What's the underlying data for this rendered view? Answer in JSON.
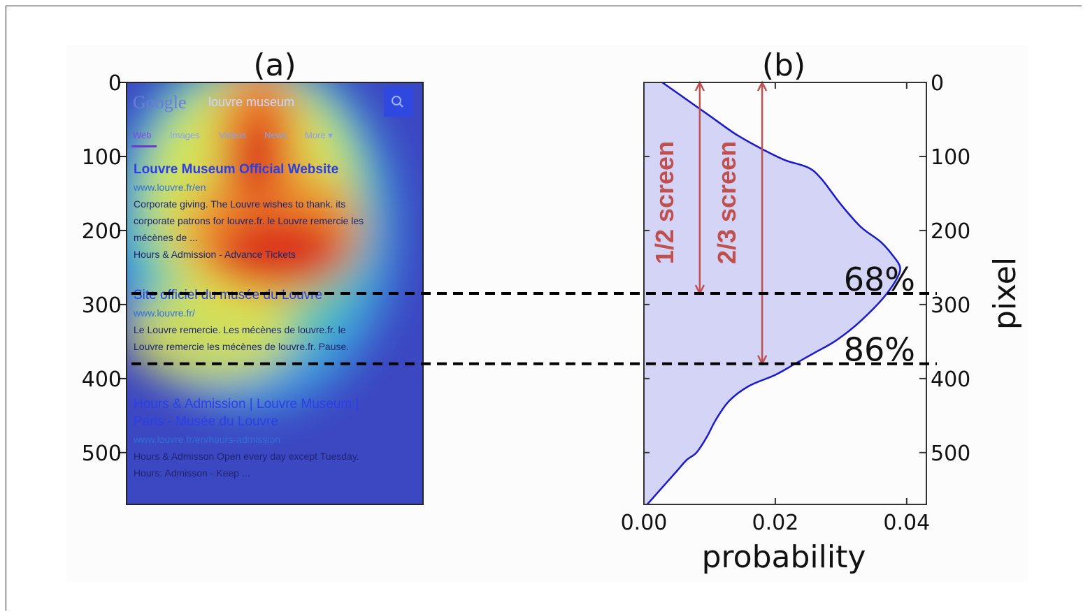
{
  "colors": {
    "density_line": "#1a1acc",
    "density_fill": "#d4d4f7",
    "annotation": "#c0504d",
    "threshold_line": "#000000",
    "heatmap_base": "#3848c8"
  },
  "panel_a": {
    "label": "(a)",
    "serp": {
      "logo": "Google",
      "query": "louvre museum",
      "search_icon": "search-icon",
      "tabs": [
        "Web",
        "Images",
        "Videos",
        "News",
        "More ▾"
      ],
      "results": [
        {
          "title_parts": [
            "Louvre Museum Official Website"
          ],
          "url": "www.louvre.fr/en",
          "snippet_lines": [
            "Corporate giving. The Louvre wishes to thank. its",
            "corporate patrons for louvre.fr. le Louvre remercie les",
            "mécènes de ...",
            "Hours & Admission - Advance Tickets"
          ]
        },
        {
          "title_parts": [
            "Site officiel du musée du Louvre"
          ],
          "url": "www.louvre.fr/",
          "snippet_lines": [
            "Le Louvre remercie. Les mécènes de louvre.fr. le",
            "Louvre remercie les mécènes de louvre.fr. Pause."
          ]
        },
        {
          "title_parts": [
            "Hours & Admission | Louvre Museum |",
            "Paris - Musée du Louvre"
          ],
          "url": "www.louvre.fr/en/hours-admission",
          "snippet_lines": [
            "Hours & Admisson Open every day except Tuesday.",
            "Hours: Admisson - Keep ..."
          ]
        }
      ]
    }
  },
  "panel_b": {
    "label": "(b)"
  },
  "chart_data": {
    "type": "area",
    "xlabel": "probability",
    "ylabel": "pixel",
    "xlim": [
      0.0,
      0.043
    ],
    "ylim": [
      0,
      570
    ],
    "y_inverted": true,
    "x_ticks": [
      "0.00",
      "0.02",
      "0.04"
    ],
    "y_ticks": [
      "0",
      "100",
      "200",
      "300",
      "400",
      "500"
    ],
    "series": [
      {
        "x": [
          0.0028,
          0.006,
          0.01,
          0.014,
          0.018,
          0.0215,
          0.025,
          0.027,
          0.03,
          0.033,
          0.036,
          0.038,
          0.039,
          0.0385,
          0.037,
          0.035,
          0.032,
          0.029,
          0.026,
          0.023,
          0.02,
          0.016,
          0.013,
          0.011,
          0.0095,
          0.008,
          0.0065,
          0.005,
          0.0035,
          0.002,
          0.0005
        ],
        "y": [
          0,
          20,
          45,
          70,
          90,
          105,
          115,
          130,
          165,
          195,
          215,
          235,
          250,
          265,
          285,
          305,
          330,
          350,
          365,
          380,
          395,
          410,
          430,
          455,
          480,
          500,
          510,
          525,
          540,
          555,
          570
        ]
      }
    ],
    "thresholds": [
      {
        "y": 285,
        "label": "68%"
      },
      {
        "y": 380,
        "label": "86%"
      }
    ],
    "annotations": [
      {
        "text": "1/2 screen",
        "x": 0.0085,
        "y_from": 0,
        "y_to": 285
      },
      {
        "text": "2/3 screen",
        "x": 0.018,
        "y_from": 0,
        "y_to": 380
      }
    ],
    "grid": false
  }
}
